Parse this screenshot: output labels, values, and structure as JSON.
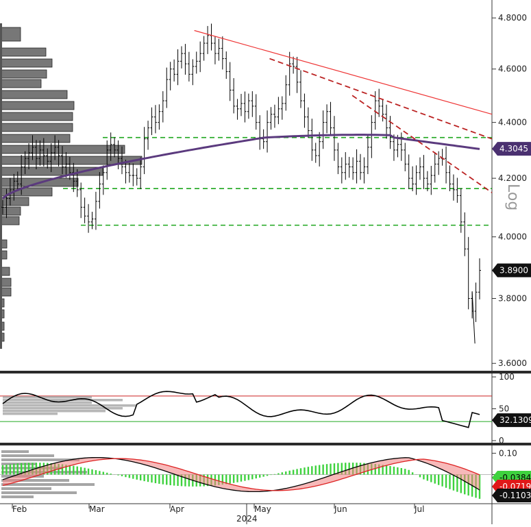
{
  "chart_data": {
    "type": "line",
    "title": "",
    "x_tick_labels": [
      "Feb",
      "Mar",
      "Apr",
      "May",
      "Jun",
      "Jul"
    ],
    "year_label": "2024",
    "price_panel": {
      "scale": "log",
      "scale_label": "Log",
      "ylim": [
        3.58,
        4.85
      ],
      "y_tick_labels": [
        "4.8000",
        "4.6000",
        "4.4000",
        "4.2000",
        "4.0000",
        "3.8000",
        "3.6000"
      ],
      "y_ticks": [
        4.8,
        4.6,
        4.4,
        4.2,
        4.0,
        3.8,
        3.6
      ],
      "last_price": 3.89,
      "last_price_label": "3.8900",
      "moving_average_label": "4.3045",
      "moving_average_last": 4.3045,
      "ohlc_bar_closes": [
        4.1,
        4.13,
        4.16,
        4.19,
        4.18,
        4.24,
        4.27,
        4.29,
        4.31,
        4.27,
        4.3,
        4.28,
        4.26,
        4.29,
        4.31,
        4.28,
        4.24,
        4.25,
        4.22,
        4.19,
        4.16,
        4.1,
        4.07,
        4.05,
        4.06,
        4.12,
        4.18,
        4.22,
        4.3,
        4.32,
        4.3,
        4.27,
        4.24,
        4.22,
        4.21,
        4.21,
        4.2,
        4.24,
        4.34,
        4.38,
        4.42,
        4.4,
        4.44,
        4.48,
        4.56,
        4.6,
        4.58,
        4.63,
        4.66,
        4.62,
        4.58,
        4.61,
        4.63,
        4.66,
        4.7,
        4.73,
        4.7,
        4.66,
        4.68,
        4.64,
        4.59,
        4.52,
        4.46,
        4.45,
        4.47,
        4.44,
        4.48,
        4.46,
        4.4,
        4.34,
        4.33,
        4.4,
        4.43,
        4.42,
        4.45,
        4.47,
        4.54,
        4.62,
        4.61,
        4.55,
        4.48,
        4.42,
        4.37,
        4.3,
        4.28,
        4.33,
        4.4,
        4.44,
        4.38,
        4.3,
        4.24,
        4.22,
        4.25,
        4.24,
        4.22,
        4.26,
        4.22,
        4.24,
        4.31,
        4.4,
        4.48,
        4.46,
        4.43,
        4.38,
        4.33,
        4.3,
        4.32,
        4.3,
        4.25,
        4.2,
        4.18,
        4.22,
        4.24,
        4.2,
        4.18,
        4.21,
        4.25,
        4.27,
        4.27,
        4.22,
        4.18,
        4.16,
        4.14,
        4.05,
        3.96,
        3.8,
        3.76,
        3.82,
        3.89
      ],
      "trendline_solid": [
        {
          "date_index": 0.395,
          "value": 4.75
        },
        {
          "date_index": 1.0,
          "value": 4.43
        }
      ],
      "trendline_dashed_1": [
        {
          "date_index": 0.548,
          "value": 4.64
        },
        {
          "date_index": 1.0,
          "value": 4.34
        }
      ],
      "trendline_dashed_2": [
        {
          "date_index": 0.716,
          "value": 4.5
        },
        {
          "date_index": 1.0,
          "value": 4.15
        }
      ],
      "support_levels": [
        4.345,
        4.164,
        4.039
      ]
    },
    "rsi_panel": {
      "ylim": [
        0,
        100
      ],
      "y_tick_labels": [
        "100",
        "50",
        "0"
      ],
      "y_ticks": [
        100,
        50,
        0
      ],
      "overbought": 70,
      "oversold": 30,
      "last_value": 32.1309,
      "last_value_label": "32.1309"
    },
    "macd_panel": {
      "ylim": [
        -0.13,
        0.13
      ],
      "y_tick_labels": [
        "0.10",
        "0.00"
      ],
      "y_ticks": [
        0.1,
        0.0
      ],
      "values_labels": [
        "-0.0384",
        "-0.0719",
        "-0.1103"
      ],
      "signal_last": -0.0384,
      "macd_last": -0.0719,
      "histogram_last": -0.1103
    }
  }
}
